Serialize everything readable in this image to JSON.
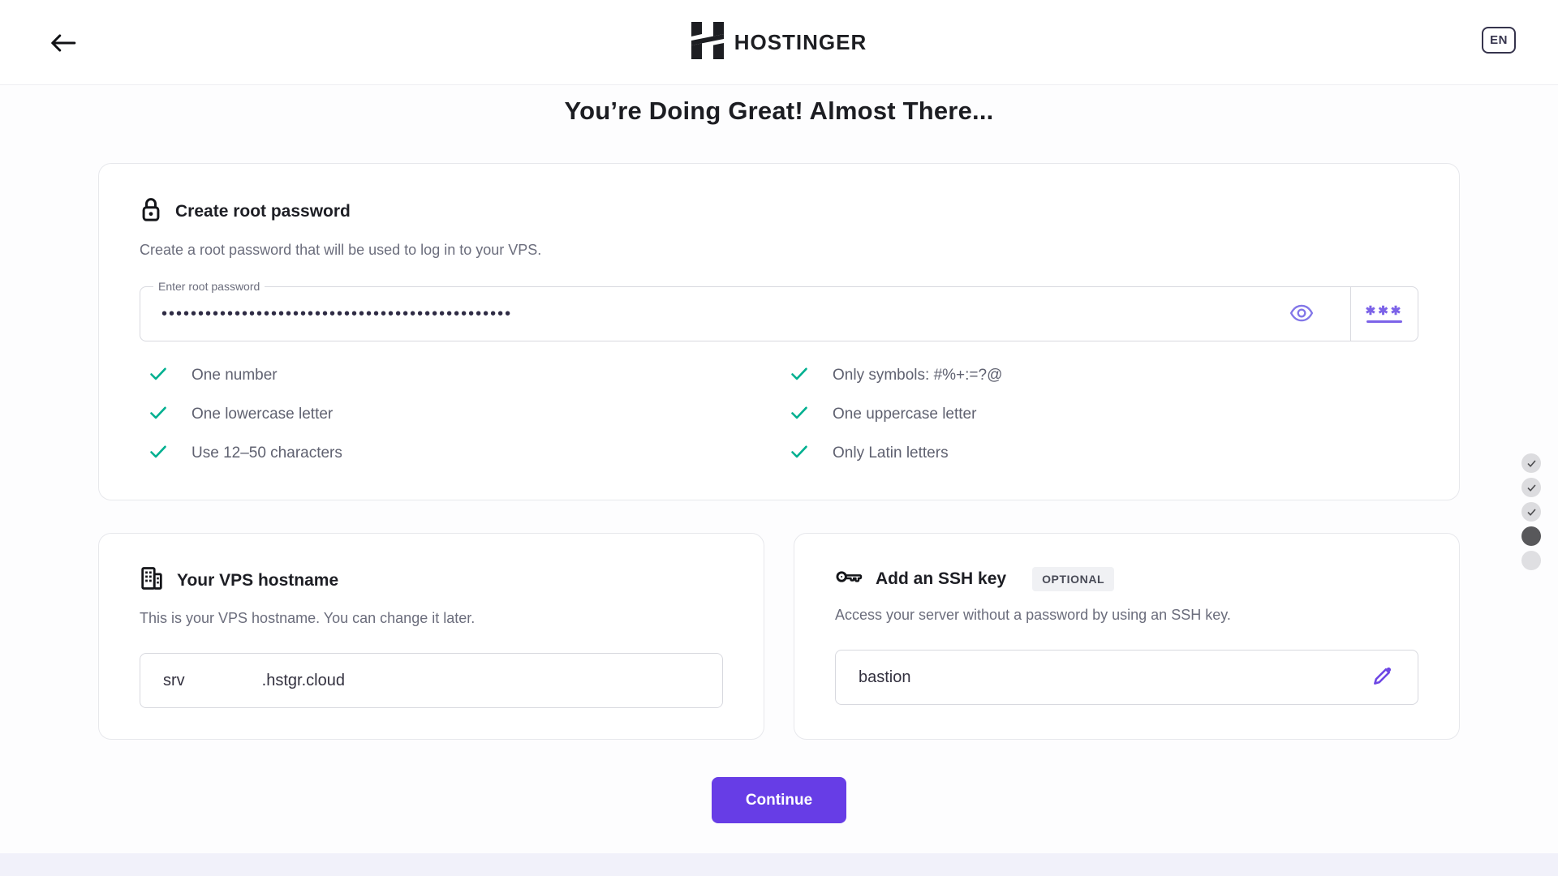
{
  "header": {
    "brand": "HOSTINGER",
    "language": "EN",
    "back_icon": "arrow-left"
  },
  "page": {
    "title": "You’re Doing Great! Almost There..."
  },
  "password_card": {
    "icon": "lock-icon",
    "title": "Create root password",
    "description": "Create a root password that will be used to log in to your VPS.",
    "input_label": "Enter root password",
    "masked_value": "••••••••••••••••••••••••••••••••••••••••••••••••",
    "eye_icon": "eye-icon",
    "generator_icon": "password-generator-icon",
    "generator_stars": "✱✱✱",
    "checklist_left": [
      {
        "label": "One number",
        "checked": true
      },
      {
        "label": "One lowercase letter",
        "checked": true
      },
      {
        "label": "Use 12–50 characters",
        "checked": true
      }
    ],
    "checklist_right": [
      {
        "label": "Only symbols: #%+:=?@",
        "checked": true
      },
      {
        "label": "One uppercase letter",
        "checked": true
      },
      {
        "label": "Only Latin letters",
        "checked": true
      }
    ]
  },
  "hostname_card": {
    "icon": "building-icon",
    "title": "Your VPS hostname",
    "description": "This is your VPS hostname. You can change it later.",
    "prefix": "srv",
    "suffix": ".hstgr.cloud"
  },
  "ssh_card": {
    "icon": "key-icon",
    "title": "Add an SSH key",
    "badge": "OPTIONAL",
    "description": "Access your server without a password by using an SSH key.",
    "value": "bastion",
    "edit_icon": "pencil-icon"
  },
  "actions": {
    "continue_label": "Continue"
  },
  "progress": {
    "steps": [
      "done",
      "done",
      "done",
      "current",
      "upcoming"
    ]
  },
  "colors": {
    "accent": "#673de6",
    "icon_purple": "#7c63e8",
    "success_green": "#00b090",
    "text_dark": "#1d1e22",
    "text_gray": "#6b6d7c",
    "footer_strip": "#f1f1fa"
  }
}
